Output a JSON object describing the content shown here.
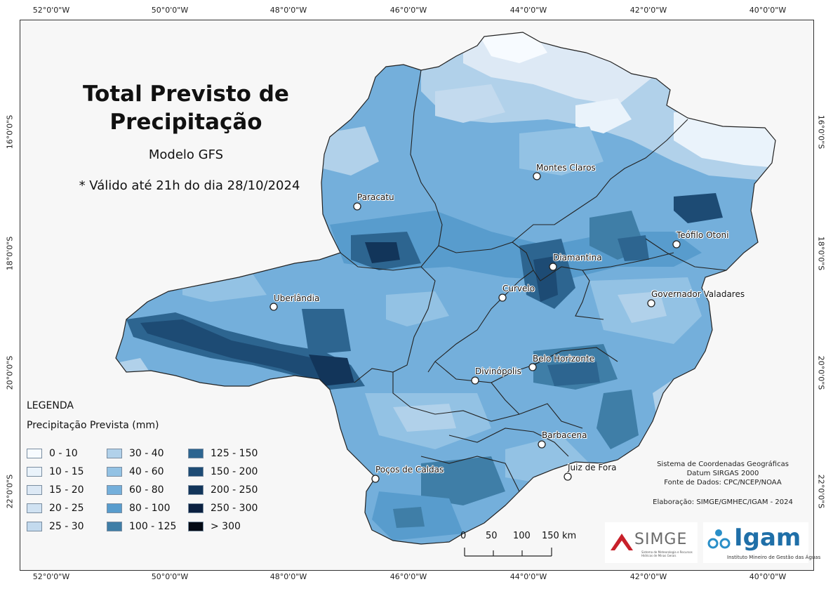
{
  "map_title": "Total Previsto de Precipitação",
  "model": "Modelo GFS",
  "validity": "* Válido até 21h do dia 28/10/2024",
  "longitude_ticks": [
    "52°0'0\"W",
    "50°0'0\"W",
    "48°0'0\"W",
    "46°0'0\"W",
    "44°0'0\"W",
    "42°0'0\"W",
    "40°0'0\"W"
  ],
  "latitude_ticks": [
    "16°0'0\"S",
    "18°0'0\"S",
    "20°0'0\"S",
    "22°0'0\"S"
  ],
  "cities": [
    "Montes Claros",
    "Paracatu",
    "Teófilo Otoni",
    "Diamantina",
    "Uberlândia",
    "Curvelo",
    "Governador Valadares",
    "Belo Horizonte",
    "Divinópolis",
    "Barbacena",
    "Juiz de Fora",
    "Poços de Caldas"
  ],
  "legend": {
    "title": "LEGENDA",
    "subtitle": "Precipitação Prevista (mm)",
    "classes": [
      {
        "label": "0 - 10",
        "color": "#f7fbff"
      },
      {
        "label": "10 - 15",
        "color": "#eaf3fb"
      },
      {
        "label": "15 - 20",
        "color": "#dde9f5"
      },
      {
        "label": "20 - 25",
        "color": "#d0e2f2"
      },
      {
        "label": "25 - 30",
        "color": "#c3daee"
      },
      {
        "label": "30 - 40",
        "color": "#b1d1ea"
      },
      {
        "label": "40 - 60",
        "color": "#93c2e4"
      },
      {
        "label": "60 - 80",
        "color": "#74afdb"
      },
      {
        "label": "80 - 100",
        "color": "#589ccd"
      },
      {
        "label": "100 - 125",
        "color": "#3f7ea7"
      },
      {
        "label": "125 - 150",
        "color": "#2d6590"
      },
      {
        "label": "150 - 200",
        "color": "#1d4b74"
      },
      {
        "label": "200 - 250",
        "color": "#12355a"
      },
      {
        "label": "250 - 300",
        "color": "#0b2040"
      },
      {
        "label": "> 300",
        "color": "#040a14"
      }
    ]
  },
  "scale_bar": {
    "labels": [
      "0",
      "50",
      "100",
      "150 km"
    ]
  },
  "info": {
    "crs": "Sistema de Coordenadas Geográficas",
    "datum": "Datum SIRGAS 2000",
    "source": "Fonte de Dados: CPC/NCEP/NOAA",
    "credits": "Elaboração: SIMGE/GMHEC/IGAM - 2024"
  },
  "logos": {
    "simge": "SIMGE",
    "simge_sub": "Sistema de Meteorologia e Recursos Hídricos de Minas Gerais",
    "igam": "Igam",
    "igam_sub": "Instituto Mineiro de Gestão das Águas"
  }
}
